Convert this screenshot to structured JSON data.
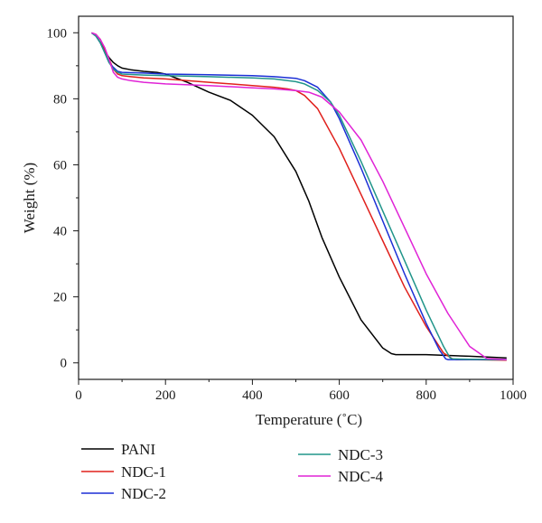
{
  "chart_data": {
    "type": "line",
    "title": "",
    "xlabel": "Temperature (˚C)",
    "ylabel": "Weight (%)",
    "xlim": [
      0,
      1000
    ],
    "ylim": [
      -5,
      105
    ],
    "xticks": [
      0,
      200,
      400,
      600,
      800,
      1000
    ],
    "yticks": [
      0,
      20,
      40,
      60,
      80,
      100
    ],
    "grid": false,
    "legend_position": "bottom",
    "series": [
      {
        "name": "PANI",
        "color": "#000000",
        "x": [
          30,
          40,
          50,
          60,
          70,
          80,
          90,
          100,
          120,
          150,
          180,
          200,
          250,
          300,
          350,
          400,
          450,
          500,
          530,
          560,
          600,
          650,
          700,
          720,
          730,
          740,
          800,
          900,
          985
        ],
        "y": [
          100,
          99,
          97,
          94.5,
          92.5,
          91,
          90,
          89.3,
          88.8,
          88.3,
          88,
          87.5,
          85,
          82,
          79.5,
          75,
          68.5,
          58,
          49,
          38,
          26,
          13,
          4.5,
          2.8,
          2.5,
          2.5,
          2.5,
          2,
          1.5
        ]
      },
      {
        "name": "NDC-1",
        "color": "#e0201c",
        "x": [
          30,
          40,
          50,
          60,
          70,
          80,
          90,
          100,
          120,
          150,
          200,
          300,
          400,
          450,
          480,
          500,
          520,
          550,
          600,
          650,
          700,
          750,
          800,
          840,
          860,
          870,
          900,
          985
        ],
        "y": [
          100,
          99.5,
          98,
          95,
          92,
          89,
          87.5,
          87,
          86.7,
          86.3,
          86,
          85,
          84,
          83.5,
          83,
          82.5,
          81,
          77,
          65,
          51,
          37,
          23,
          11,
          3,
          1.2,
          1,
          1,
          0.8
        ]
      },
      {
        "name": "NDC-2",
        "color": "#1b2fd6",
        "x": [
          30,
          40,
          50,
          60,
          70,
          80,
          90,
          100,
          150,
          200,
          300,
          400,
          450,
          500,
          520,
          550,
          580,
          600,
          650,
          700,
          750,
          800,
          830,
          845,
          850,
          900,
          985
        ],
        "y": [
          100,
          99,
          97,
          94,
          91,
          89.5,
          88.3,
          88,
          87.8,
          87.5,
          87.3,
          87,
          86.7,
          86.2,
          85.5,
          83.5,
          79,
          74,
          59,
          43,
          27,
          12,
          4,
          1.2,
          1,
          1,
          1
        ]
      },
      {
        "name": "NDC-3",
        "color": "#21958a",
        "x": [
          30,
          40,
          50,
          60,
          70,
          80,
          90,
          100,
          150,
          200,
          300,
          400,
          450,
          500,
          520,
          550,
          580,
          600,
          650,
          700,
          750,
          800,
          840,
          855,
          860,
          900,
          985
        ],
        "y": [
          100,
          99,
          97,
          94,
          91,
          89,
          88,
          87.5,
          87.2,
          87,
          86.7,
          86.3,
          86,
          85.2,
          84.5,
          82.5,
          79,
          75,
          61,
          46,
          31,
          16,
          5,
          1.5,
          1.2,
          1.1,
          1
        ]
      },
      {
        "name": "NDC-4",
        "color": "#e023d6",
        "x": [
          30,
          40,
          50,
          60,
          70,
          80,
          90,
          100,
          120,
          150,
          200,
          300,
          400,
          450,
          500,
          530,
          560,
          600,
          650,
          700,
          750,
          800,
          850,
          900,
          940,
          950,
          985
        ],
        "y": [
          100,
          99.5,
          98,
          95.5,
          92,
          88,
          86.5,
          86,
          85.5,
          85,
          84.5,
          84,
          83.3,
          83,
          82.5,
          82,
          80.5,
          76,
          67.5,
          55,
          41,
          27,
          15,
          5,
          1.3,
          1.2,
          1
        ]
      }
    ]
  }
}
